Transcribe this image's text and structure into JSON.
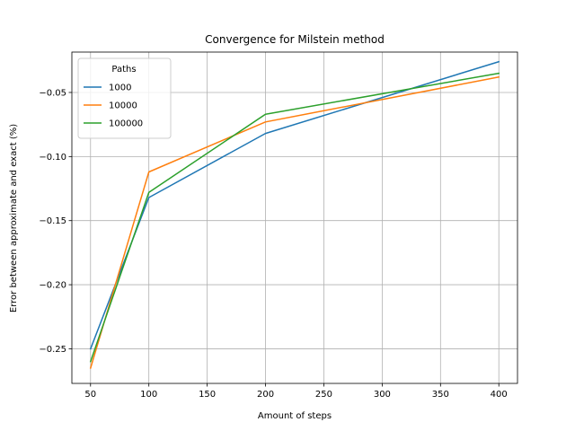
{
  "chart_data": {
    "type": "line",
    "title": "Convergence for Milstein method",
    "xlabel": "Amount of steps",
    "ylabel": "Error between approximate and exact (%)",
    "x": [
      50,
      100,
      200,
      400
    ],
    "xlim": [
      34,
      416
    ],
    "ylim": [
      -0.277,
      -0.0185
    ],
    "xticks": [
      50,
      100,
      150,
      200,
      250,
      300,
      350,
      400
    ],
    "yticks": [
      -0.25,
      -0.2,
      -0.15,
      -0.1,
      -0.05
    ],
    "xtick_labels": [
      "50",
      "100",
      "150",
      "200",
      "250",
      "300",
      "350",
      "400"
    ],
    "ytick_labels": [
      "−0.25",
      "−0.20",
      "−0.15",
      "−0.10",
      "−0.05"
    ],
    "grid": true,
    "legend": {
      "title": "Paths",
      "placement": "top-left"
    },
    "series": [
      {
        "name": "1000",
        "color": "#1f77b4",
        "values": [
          -0.25,
          -0.132,
          -0.082,
          -0.026
        ]
      },
      {
        "name": "10000",
        "color": "#ff7f0e",
        "values": [
          -0.265,
          -0.112,
          -0.073,
          -0.038
        ]
      },
      {
        "name": "100000",
        "color": "#2ca02c",
        "values": [
          -0.26,
          -0.128,
          -0.067,
          -0.035
        ]
      }
    ]
  }
}
